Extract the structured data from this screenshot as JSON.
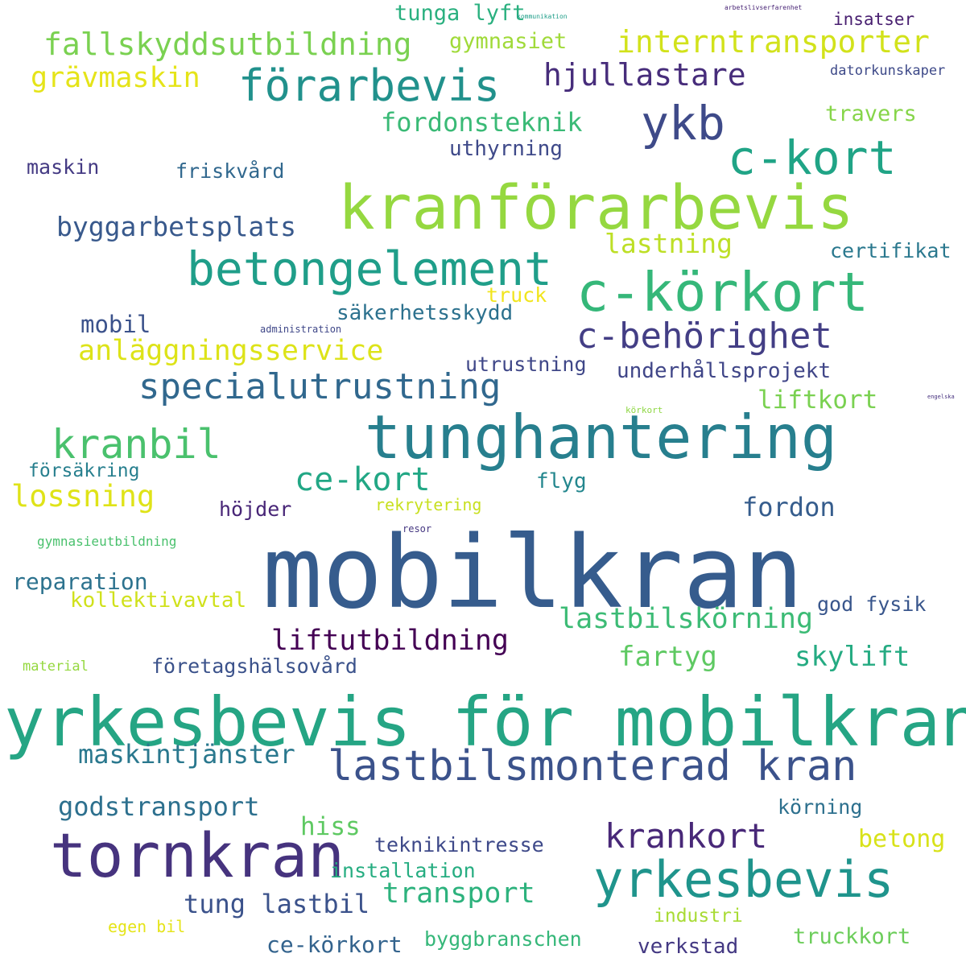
{
  "words": [
    {
      "text": "mobilkran",
      "color": "#365c8d"
    },
    {
      "text": "yrkesbevis för mobilkran",
      "color": "#25a584"
    },
    {
      "text": "tunghantering",
      "color": "#277f8e"
    },
    {
      "text": "kranförarbevis",
      "color": "#95d840"
    },
    {
      "text": "tornkran",
      "color": "#46337e"
    },
    {
      "text": "c-körkort",
      "color": "#35b779"
    },
    {
      "text": "betongelement",
      "color": "#1f9e89"
    },
    {
      "text": "yrkesbevis",
      "color": "#1f948c"
    },
    {
      "text": "förarbevis",
      "color": "#21918c"
    },
    {
      "text": "lastbilsmonterad kran",
      "color": "#3b528b"
    },
    {
      "text": "c-kort",
      "color": "#20a486"
    },
    {
      "text": "ykb",
      "color": "#3e4a89"
    },
    {
      "text": "kranbil",
      "color": "#4ac16d"
    },
    {
      "text": "c-behörighet",
      "color": "#433e85"
    },
    {
      "text": "specialutrustning",
      "color": "#31688e"
    },
    {
      "text": "krankort",
      "color": "#482878"
    },
    {
      "text": "fallskyddsutbildning",
      "color": "#7ad151"
    },
    {
      "text": "interntransporter",
      "color": "#d2e21b"
    },
    {
      "text": "ce-kort",
      "color": "#22a785"
    },
    {
      "text": "hjullastare",
      "color": "#472d7b"
    },
    {
      "text": "anläggningsservice",
      "color": "#dde318"
    },
    {
      "text": "lastbilskörning",
      "color": "#3cbb75"
    },
    {
      "text": "liftutbildning",
      "color": "#440154"
    },
    {
      "text": "grävmaskin",
      "color": "#e5e419"
    },
    {
      "text": "transport",
      "color": "#2db27d"
    },
    {
      "text": "lossning",
      "color": "#dfe318"
    },
    {
      "text": "byggarbetsplats",
      "color": "#38598c"
    },
    {
      "text": "godstransport",
      "color": "#2d708e"
    },
    {
      "text": "maskintjänster",
      "color": "#2a788e"
    },
    {
      "text": "fordonsteknik",
      "color": "#3aba76"
    },
    {
      "text": "tung lastbil",
      "color": "#3b528b"
    },
    {
      "text": "lastning",
      "color": "#bddf26"
    },
    {
      "text": "skylift",
      "color": "#25ab82"
    },
    {
      "text": "fartyg",
      "color": "#5ec962"
    },
    {
      "text": "fordon",
      "color": "#365d8d"
    },
    {
      "text": "betong",
      "color": "#d8e219"
    },
    {
      "text": "hiss",
      "color": "#5ec962"
    },
    {
      "text": "liftkort",
      "color": "#7ad151"
    },
    {
      "text": "certifikat",
      "color": "#2a788e"
    },
    {
      "text": "reparation",
      "color": "#2c728e"
    },
    {
      "text": "mobil",
      "color": "#3b528b"
    },
    {
      "text": "gymnasiet",
      "color": "#a0da39"
    },
    {
      "text": "uthyrning",
      "color": "#3e4989"
    },
    {
      "text": "underhållsprojekt",
      "color": "#404688"
    },
    {
      "text": "säkerhetsskydd",
      "color": "#2c718e"
    },
    {
      "text": "företagshälsovård",
      "color": "#3b528b"
    },
    {
      "text": "teknikintresse",
      "color": "#3e4989"
    },
    {
      "text": "installation",
      "color": "#26ad81"
    },
    {
      "text": "kollektivavtal",
      "color": "#d0e11c"
    },
    {
      "text": "byggbranschen",
      "color": "#35b779"
    },
    {
      "text": "truckkort",
      "color": "#6ccd5a"
    },
    {
      "text": "ce-körkort",
      "color": "#33638d"
    },
    {
      "text": "verkstad",
      "color": "#443983"
    },
    {
      "text": "travers",
      "color": "#86d549"
    },
    {
      "text": "körning",
      "color": "#2d708e"
    },
    {
      "text": "god fysik",
      "color": "#39568c"
    },
    {
      "text": "tunga lyft",
      "color": "#2ab07f"
    },
    {
      "text": "friskvård",
      "color": "#31688e"
    },
    {
      "text": "maskin",
      "color": "#443a83"
    },
    {
      "text": "utrustning",
      "color": "#3f4788"
    },
    {
      "text": "höjder",
      "color": "#482677"
    },
    {
      "text": "flyg",
      "color": "#24878e"
    },
    {
      "text": "försäkring",
      "color": "#277f8e"
    },
    {
      "text": "industri",
      "color": "#a8db34"
    },
    {
      "text": "insatser",
      "color": "#481f70"
    },
    {
      "text": "rekrytering",
      "color": "#c8e020"
    },
    {
      "text": "truck",
      "color": "#f1e51d"
    },
    {
      "text": "datorkunskaper",
      "color": "#3e4a89"
    },
    {
      "text": "egen bil",
      "color": "#e5e419"
    },
    {
      "text": "gymnasieutbildning",
      "color": "#4ac16d"
    },
    {
      "text": "material",
      "color": "#95d840"
    },
    {
      "text": "administration",
      "color": "#3f4788"
    },
    {
      "text": "resor",
      "color": "#453781"
    },
    {
      "text": "körkort",
      "color": "#8fd744"
    },
    {
      "text": "kommunikation",
      "color": "#1f9e89"
    },
    {
      "text": "arbetslivserfarenhet",
      "color": "#482475"
    },
    {
      "text": "engelska",
      "color": "#46307e"
    }
  ]
}
